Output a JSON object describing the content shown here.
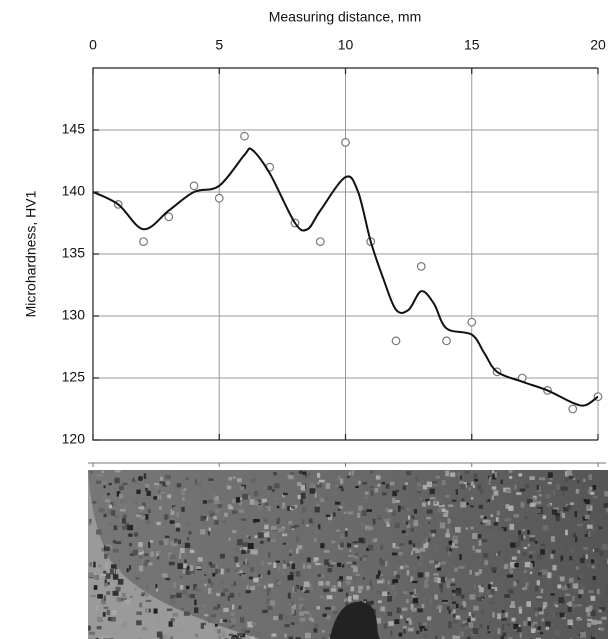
{
  "chart_data": {
    "type": "scatter",
    "x_label": "Measuring distance, mm",
    "y_label": "Microhardness, HV1",
    "xlim": [
      0,
      20
    ],
    "xticks": [
      0,
      5,
      10,
      15,
      20
    ],
    "ylim": [
      120,
      150
    ],
    "yticks": [
      120,
      125,
      130,
      135,
      140,
      145
    ],
    "grid": true,
    "series": [
      {
        "type": "scatter",
        "color": "#777777",
        "x": [
          1,
          2,
          3,
          4,
          5,
          6,
          7,
          8,
          9,
          10,
          11,
          12,
          13,
          14,
          15,
          16,
          17,
          18,
          19,
          20
        ],
        "values": [
          139,
          136,
          138,
          140.5,
          139.5,
          144.5,
          142,
          137.5,
          136,
          144,
          136,
          128,
          134,
          128,
          129.5,
          125.5,
          125,
          124,
          122.5,
          123.5
        ]
      },
      {
        "type": "line",
        "color": "#111111",
        "x": [
          0,
          1,
          2,
          3,
          4,
          5,
          6,
          6.3,
          7,
          8,
          8.5,
          9,
          10,
          10.5,
          11,
          11.5,
          12,
          12.5,
          13,
          13.5,
          14,
          15,
          15.5,
          16,
          17,
          18,
          19,
          19.5,
          20
        ],
        "values": [
          140,
          139,
          137,
          138.5,
          140,
          140.5,
          143,
          143.4,
          141.5,
          137.5,
          137,
          138.5,
          141.2,
          140,
          136,
          133,
          130.5,
          130.5,
          132,
          131,
          129,
          128.5,
          127,
          125.5,
          124.7,
          124,
          123,
          122.8,
          123.5
        ]
      }
    ]
  }
}
